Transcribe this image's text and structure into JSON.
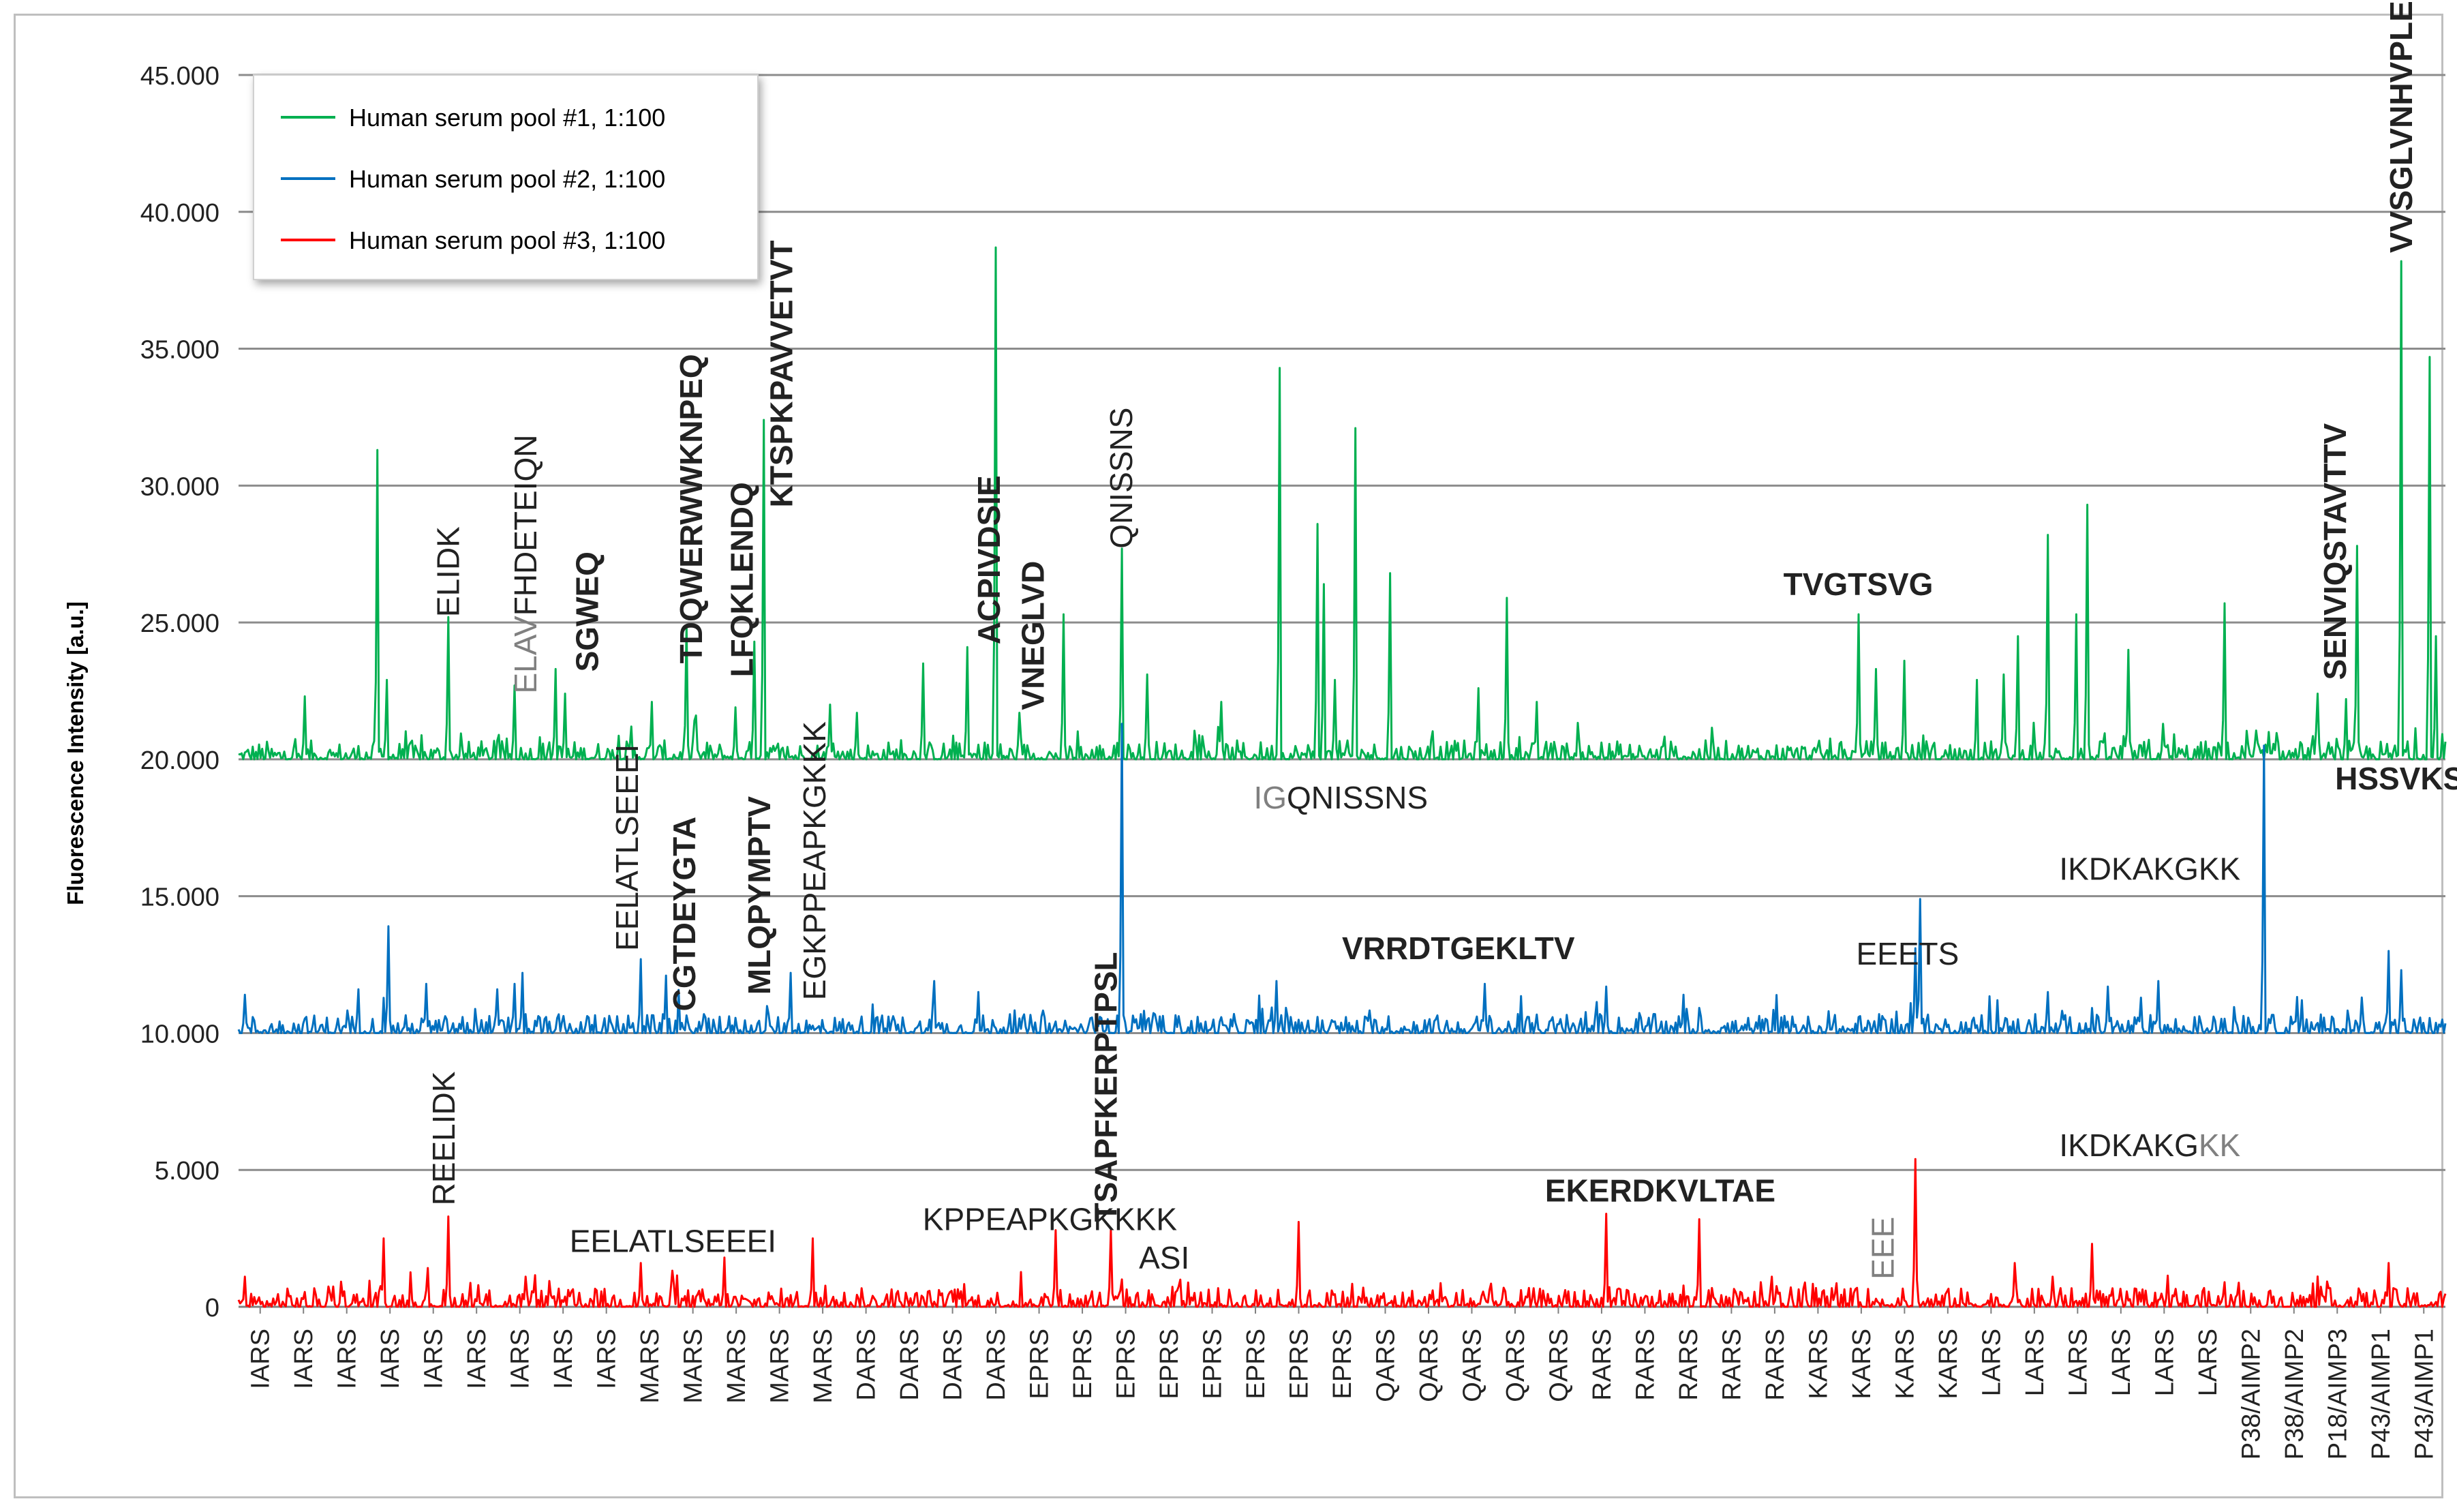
{
  "chart_data": {
    "type": "line",
    "title": "",
    "xlabel": "",
    "ylabel": "Fluorescence Intensity [a.u.]",
    "ylim": [
      0,
      45000
    ],
    "yticks": [
      "0",
      "5.000",
      "10.000",
      "15.000",
      "20.000",
      "25.000",
      "30.000",
      "35.000",
      "40.000",
      "45.000"
    ],
    "grid": true,
    "legend_position": "top-left",
    "categories": [
      "IARS",
      "IARS",
      "IARS",
      "IARS",
      "IARS",
      "IARS",
      "IARS",
      "IARS",
      "IARS",
      "MARS",
      "MARS",
      "MARS",
      "MARS",
      "MARS",
      "DARS",
      "DARS",
      "DARS",
      "DARS",
      "EPRS",
      "EPRS",
      "EPRS",
      "EPRS",
      "EPRS",
      "EPRS",
      "EPRS",
      "EPRS",
      "QARS",
      "QARS",
      "QARS",
      "QARS",
      "QARS",
      "RARS",
      "RARS",
      "RARS",
      "RARS",
      "RARS",
      "KARS",
      "KARS",
      "KARS",
      "KARS",
      "LARS",
      "LARS",
      "LARS",
      "LARS",
      "LARS",
      "LARS",
      "P38/AIMP2",
      "P38/AIMP2",
      "P18/AIMP3",
      "P43/AIMP1",
      "P43/AIMP1"
    ],
    "series": [
      {
        "name": "Human serum pool #1, 1:100",
        "color": "#00b050",
        "offset": 20000,
        "peaks": [
          {
            "x": 0.03,
            "y": 22300
          },
          {
            "x": 0.063,
            "y": 31300
          },
          {
            "x": 0.067,
            "y": 22900
          },
          {
            "x": 0.095,
            "y": 25200
          },
          {
            "x": 0.125,
            "y": 22700
          },
          {
            "x": 0.144,
            "y": 23300
          },
          {
            "x": 0.148,
            "y": 22400
          },
          {
            "x": 0.178,
            "y": 21200
          },
          {
            "x": 0.187,
            "y": 22100
          },
          {
            "x": 0.203,
            "y": 24900
          },
          {
            "x": 0.207,
            "y": 21600
          },
          {
            "x": 0.225,
            "y": 21900
          },
          {
            "x": 0.234,
            "y": 24300
          },
          {
            "x": 0.238,
            "y": 32400
          },
          {
            "x": 0.268,
            "y": 22000
          },
          {
            "x": 0.28,
            "y": 21700
          },
          {
            "x": 0.31,
            "y": 23500
          },
          {
            "x": 0.33,
            "y": 24100
          },
          {
            "x": 0.343,
            "y": 38700
          },
          {
            "x": 0.354,
            "y": 21700
          },
          {
            "x": 0.374,
            "y": 25300
          },
          {
            "x": 0.4,
            "y": 27700
          },
          {
            "x": 0.412,
            "y": 23100
          },
          {
            "x": 0.445,
            "y": 22100
          },
          {
            "x": 0.472,
            "y": 34300
          },
          {
            "x": 0.489,
            "y": 28600
          },
          {
            "x": 0.492,
            "y": 26400
          },
          {
            "x": 0.497,
            "y": 22900
          },
          {
            "x": 0.506,
            "y": 32100
          },
          {
            "x": 0.522,
            "y": 26800
          },
          {
            "x": 0.562,
            "y": 22600
          },
          {
            "x": 0.575,
            "y": 25900
          },
          {
            "x": 0.588,
            "y": 22100
          },
          {
            "x": 0.734,
            "y": 25300
          },
          {
            "x": 0.742,
            "y": 23300
          },
          {
            "x": 0.755,
            "y": 23600
          },
          {
            "x": 0.788,
            "y": 22900
          },
          {
            "x": 0.8,
            "y": 23100
          },
          {
            "x": 0.806,
            "y": 24500
          },
          {
            "x": 0.82,
            "y": 28200
          },
          {
            "x": 0.833,
            "y": 25300
          },
          {
            "x": 0.838,
            "y": 29300
          },
          {
            "x": 0.856,
            "y": 24000
          },
          {
            "x": 0.872,
            "y": 21300
          },
          {
            "x": 0.9,
            "y": 25700
          },
          {
            "x": 0.92,
            "y": 21000
          },
          {
            "x": 0.942,
            "y": 22400
          },
          {
            "x": 0.955,
            "y": 22200
          },
          {
            "x": 0.96,
            "y": 27800
          },
          {
            "x": 0.98,
            "y": 38200
          },
          {
            "x": 0.993,
            "y": 34700
          },
          {
            "x": 0.996,
            "y": 24500
          }
        ]
      },
      {
        "name": "Human serum pool #2, 1:100",
        "color": "#0070c0",
        "offset": 10000,
        "peaks": [
          {
            "x": 0.003,
            "y": 11400
          },
          {
            "x": 0.054,
            "y": 11600
          },
          {
            "x": 0.068,
            "y": 13900
          },
          {
            "x": 0.085,
            "y": 11800
          },
          {
            "x": 0.117,
            "y": 11600
          },
          {
            "x": 0.125,
            "y": 11800
          },
          {
            "x": 0.129,
            "y": 12200
          },
          {
            "x": 0.182,
            "y": 12700
          },
          {
            "x": 0.194,
            "y": 12100
          },
          {
            "x": 0.25,
            "y": 12200
          },
          {
            "x": 0.315,
            "y": 11900
          },
          {
            "x": 0.335,
            "y": 11500
          },
          {
            "x": 0.4,
            "y": 21300
          },
          {
            "x": 0.47,
            "y": 11900
          },
          {
            "x": 0.565,
            "y": 11800
          },
          {
            "x": 0.62,
            "y": 11700
          },
          {
            "x": 0.655,
            "y": 11400
          },
          {
            "x": 0.76,
            "y": 13100
          },
          {
            "x": 0.762,
            "y": 14900
          },
          {
            "x": 0.82,
            "y": 11500
          },
          {
            "x": 0.847,
            "y": 11700
          },
          {
            "x": 0.87,
            "y": 11900
          },
          {
            "x": 0.918,
            "y": 20500
          },
          {
            "x": 0.935,
            "y": 11200
          },
          {
            "x": 0.962,
            "y": 11300
          },
          {
            "x": 0.974,
            "y": 13000
          },
          {
            "x": 0.98,
            "y": 12300
          }
        ]
      },
      {
        "name": "Human serum pool #3, 1:100",
        "color": "#ff0000",
        "offset": 0,
        "peaks": [
          {
            "x": 0.003,
            "y": 1100
          },
          {
            "x": 0.066,
            "y": 2500
          },
          {
            "x": 0.095,
            "y": 3300
          },
          {
            "x": 0.13,
            "y": 1100
          },
          {
            "x": 0.182,
            "y": 1600
          },
          {
            "x": 0.22,
            "y": 1800
          },
          {
            "x": 0.26,
            "y": 2500
          },
          {
            "x": 0.37,
            "y": 2800
          },
          {
            "x": 0.395,
            "y": 2800
          },
          {
            "x": 0.4,
            "y": 1000
          },
          {
            "x": 0.48,
            "y": 3100
          },
          {
            "x": 0.62,
            "y": 3400
          },
          {
            "x": 0.662,
            "y": 3200
          },
          {
            "x": 0.695,
            "y": 1100
          },
          {
            "x": 0.76,
            "y": 5400
          },
          {
            "x": 0.805,
            "y": 1600
          },
          {
            "x": 0.822,
            "y": 1100
          },
          {
            "x": 0.84,
            "y": 2300
          },
          {
            "x": 0.9,
            "y": 900
          },
          {
            "x": 0.974,
            "y": 1600
          }
        ]
      }
    ],
    "annotations": [
      {
        "text": "ELIDK",
        "series": 0,
        "x": 0.095,
        "y": 25200,
        "bold": false
      },
      {
        "text": "ELAVFHDETEIQN",
        "series": 0,
        "x": 0.13,
        "y": 22400,
        "bold": false,
        "grey_prefix": "ELAV"
      },
      {
        "text": "SGWEQ",
        "series": 0,
        "x": 0.158,
        "y": 23200,
        "bold": true
      },
      {
        "text": "TDQWERWWKNPEQ",
        "series": 0,
        "x": 0.205,
        "y": 23500,
        "bold": true
      },
      {
        "text": "LFQKLENDQ",
        "series": 0,
        "x": 0.228,
        "y": 23000,
        "bold": true
      },
      {
        "text": "KTSPKPAVVETVT",
        "series": 0,
        "x": 0.246,
        "y": 29200,
        "bold": true
      },
      {
        "text": "ACPIVDSIE",
        "series": 0,
        "x": 0.34,
        "y": 24200,
        "bold": true
      },
      {
        "text": "VNEGLVD",
        "series": 0,
        "x": 0.36,
        "y": 21800,
        "bold": true
      },
      {
        "text": "QNISSNS",
        "series": 0,
        "x": 0.4,
        "y": 27700,
        "bold": false
      },
      {
        "text": "TVGTSVG",
        "series": 0,
        "x": 0.7,
        "y": 26000,
        "bold": true,
        "horizontal": true
      },
      {
        "text": "SENVIQSTAVTTV",
        "series": 0,
        "x": 0.95,
        "y": 22900,
        "bold": true
      },
      {
        "text": "VVSGLVNHVPLEQ",
        "series": 0,
        "x": 0.98,
        "y": 38500,
        "bold": true
      },
      {
        "text": "IGQNISSNS",
        "series": 1,
        "x": 0.46,
        "y": 18200,
        "bold": false,
        "horizontal": true,
        "grey_prefix": "IG"
      },
      {
        "text": "EELATLSEEEI",
        "series": 1,
        "x": 0.176,
        "y": 13000,
        "bold": false
      },
      {
        "text": "CGTDEYGTA",
        "series": 1,
        "x": 0.202,
        "y": 10800,
        "bold": true
      },
      {
        "text": "MLQPYMPTV",
        "series": 1,
        "x": 0.236,
        "y": 11400,
        "bold": true
      },
      {
        "text": "EGKPPEAPKGKKK",
        "series": 1,
        "x": 0.261,
        "y": 11200,
        "bold": false
      },
      {
        "text": "TSAPFKERPTPSL",
        "series": 1,
        "x": 0.393,
        "y": 3100,
        "bold": true
      },
      {
        "text": "VRRDTGEKLTV",
        "series": 1,
        "x": 0.5,
        "y": 12700,
        "bold": true,
        "horizontal": true
      },
      {
        "text": "EEETS",
        "series": 1,
        "x": 0.733,
        "y": 12500,
        "bold": false,
        "horizontal": true
      },
      {
        "text": "IKDKAKGKK",
        "series": 1,
        "x": 0.825,
        "y": 15600,
        "bold": false,
        "horizontal": true
      },
      {
        "text": "HSSVKS",
        "series": 1,
        "x": 0.95,
        "y": 18900,
        "bold": true,
        "horizontal": true
      },
      {
        "text": "REELIDK",
        "series": 2,
        "x": 0.093,
        "y": 3700,
        "bold": false
      },
      {
        "text": "EELATLSEEEI",
        "series": 2,
        "x": 0.15,
        "y": 2000,
        "bold": false,
        "horizontal": true
      },
      {
        "text": "KPPEAPKGKKKK",
        "series": 2,
        "x": 0.31,
        "y": 2800,
        "bold": false,
        "horizontal": true
      },
      {
        "text": "ASI",
        "series": 2,
        "x": 0.408,
        "y": 1400,
        "bold": false,
        "horizontal": true
      },
      {
        "text": "EKERDKVLTAE",
        "series": 2,
        "x": 0.592,
        "y": 3850,
        "bold": true,
        "horizontal": true
      },
      {
        "text": "EEE",
        "series": 2,
        "x": 0.745,
        "y": 1000,
        "bold": false,
        "grey": true
      },
      {
        "text": "IKDKAKGKK",
        "series": 2,
        "x": 0.825,
        "y": 5500,
        "bold": false,
        "horizontal": true,
        "grey_suffix": "KK"
      }
    ]
  }
}
